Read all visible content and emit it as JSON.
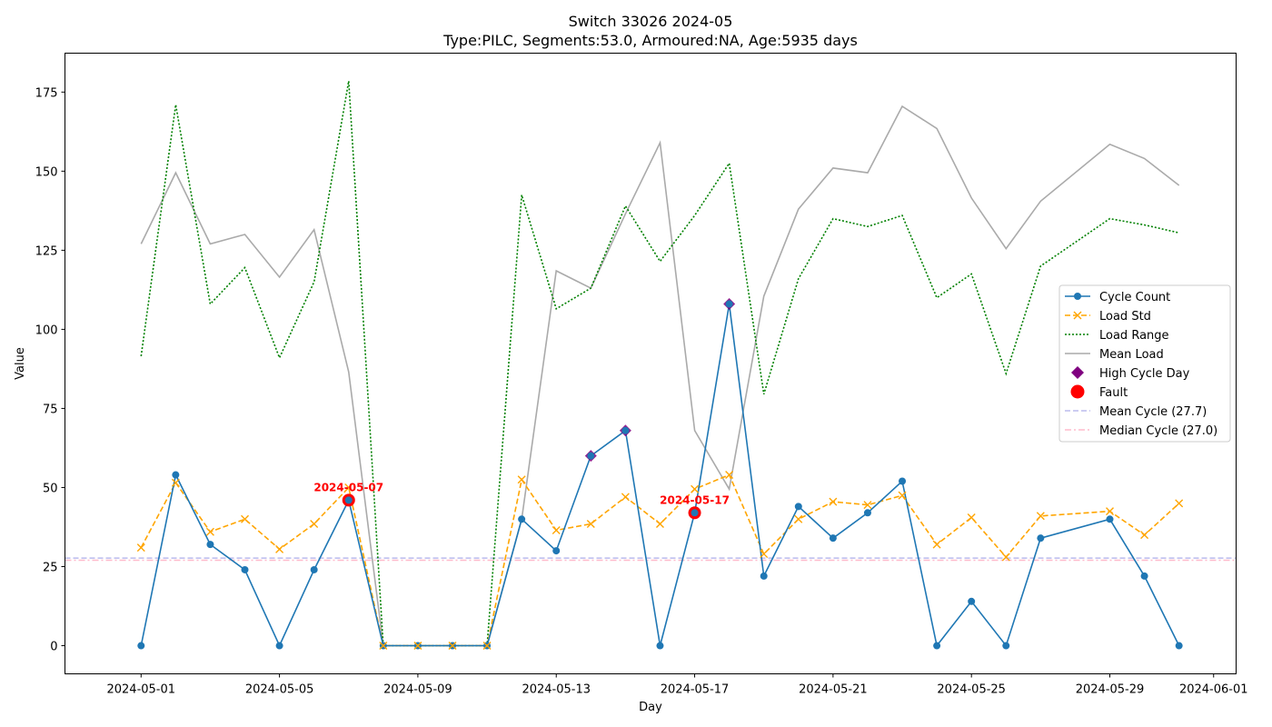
{
  "chart_data": {
    "type": "line",
    "title": "Switch 33026 2024-05",
    "subtitle": "Type:PILC, Segments:53.0, Armoured:NA, Age:5935 days",
    "xlabel": "Day",
    "ylabel": "Value",
    "xlim": [
      "2024-04-29",
      "2024-06-01"
    ],
    "ylim": [
      -8.9,
      187.3
    ],
    "x_ticks": [
      "2024-05-01",
      "2024-05-05",
      "2024-05-09",
      "2024-05-13",
      "2024-05-17",
      "2024-05-21",
      "2024-05-25",
      "2024-05-29",
      "2024-06-01"
    ],
    "y_ticks": [
      0,
      25,
      50,
      75,
      100,
      125,
      150,
      175
    ],
    "legend_position": "center-right",
    "grid": false,
    "series": [
      {
        "name": "Cycle Count",
        "color": "#1f77b4",
        "style": "solid",
        "marker": "circle",
        "points": [
          [
            "2024-05-01",
            0
          ],
          [
            "2024-05-02",
            54
          ],
          [
            "2024-05-03",
            32
          ],
          [
            "2024-05-04",
            24
          ],
          [
            "2024-05-05",
            0
          ],
          [
            "2024-05-06",
            24
          ],
          [
            "2024-05-07",
            46
          ],
          [
            "2024-05-08",
            0
          ],
          [
            "2024-05-09",
            0
          ],
          [
            "2024-05-10",
            0
          ],
          [
            "2024-05-11",
            0
          ],
          [
            "2024-05-12",
            40
          ],
          [
            "2024-05-13",
            30
          ],
          [
            "2024-05-14",
            60
          ],
          [
            "2024-05-15",
            68
          ],
          [
            "2024-05-16",
            0
          ],
          [
            "2024-05-17",
            42
          ],
          [
            "2024-05-18",
            108
          ],
          [
            "2024-05-19",
            22
          ],
          [
            "2024-05-20",
            44
          ],
          [
            "2024-05-21",
            34
          ],
          [
            "2024-05-22",
            42
          ],
          [
            "2024-05-23",
            52
          ],
          [
            "2024-05-24",
            0
          ],
          [
            "2024-05-25",
            14
          ],
          [
            "2024-05-26",
            0
          ],
          [
            "2024-05-27",
            34
          ],
          [
            "2024-05-29",
            40
          ],
          [
            "2024-05-30",
            22
          ],
          [
            "2024-05-31",
            0
          ]
        ]
      },
      {
        "name": "Load Std",
        "color": "#ffa500",
        "style": "dashed",
        "marker": "x",
        "points": [
          [
            "2024-05-01",
            31
          ],
          [
            "2024-05-02",
            51.5
          ],
          [
            "2024-05-03",
            36
          ],
          [
            "2024-05-04",
            40
          ],
          [
            "2024-05-05",
            30.5
          ],
          [
            "2024-05-06",
            38.5
          ],
          [
            "2024-05-07",
            50
          ],
          [
            "2024-05-08",
            0
          ],
          [
            "2024-05-09",
            0
          ],
          [
            "2024-05-10",
            0
          ],
          [
            "2024-05-11",
            0
          ],
          [
            "2024-05-12",
            52.5
          ],
          [
            "2024-05-13",
            36.5
          ],
          [
            "2024-05-14",
            38.5
          ],
          [
            "2024-05-15",
            47
          ],
          [
            "2024-05-16",
            38.5
          ],
          [
            "2024-05-17",
            49.5
          ],
          [
            "2024-05-18",
            54
          ],
          [
            "2024-05-19",
            29
          ],
          [
            "2024-05-20",
            40
          ],
          [
            "2024-05-21",
            45.5
          ],
          [
            "2024-05-22",
            44.5
          ],
          [
            "2024-05-23",
            47.5
          ],
          [
            "2024-05-24",
            32
          ],
          [
            "2024-05-25",
            40.5
          ],
          [
            "2024-05-26",
            28
          ],
          [
            "2024-05-27",
            41
          ],
          [
            "2024-05-29",
            42.5
          ],
          [
            "2024-05-30",
            35
          ],
          [
            "2024-05-31",
            45
          ]
        ]
      },
      {
        "name": "Load Range",
        "color": "#008000",
        "style": "dotted",
        "marker": "none",
        "points": [
          [
            "2024-05-01",
            91.5
          ],
          [
            "2024-05-02",
            171
          ],
          [
            "2024-05-03",
            108
          ],
          [
            "2024-05-04",
            119.5
          ],
          [
            "2024-05-05",
            91
          ],
          [
            "2024-05-06",
            115
          ],
          [
            "2024-05-07",
            178.5
          ],
          [
            "2024-05-08",
            0
          ],
          [
            "2024-05-09",
            0
          ],
          [
            "2024-05-10",
            0
          ],
          [
            "2024-05-11",
            0
          ],
          [
            "2024-05-12",
            142.5
          ],
          [
            "2024-05-13",
            106.5
          ],
          [
            "2024-05-14",
            113
          ],
          [
            "2024-05-15",
            139
          ],
          [
            "2024-05-16",
            121.5
          ],
          [
            "2024-05-17",
            136
          ],
          [
            "2024-05-18",
            152.5
          ],
          [
            "2024-05-19",
            79.5
          ],
          [
            "2024-05-20",
            116
          ],
          [
            "2024-05-21",
            135
          ],
          [
            "2024-05-22",
            132.5
          ],
          [
            "2024-05-23",
            136
          ],
          [
            "2024-05-24",
            110
          ],
          [
            "2024-05-25",
            117.5
          ],
          [
            "2024-05-26",
            86
          ],
          [
            "2024-05-27",
            120
          ],
          [
            "2024-05-29",
            135
          ],
          [
            "2024-05-30",
            133
          ],
          [
            "2024-05-31",
            130.5
          ]
        ]
      },
      {
        "name": "Mean Load",
        "color": "#aaaaaa",
        "style": "solid",
        "marker": "none",
        "points": [
          [
            "2024-05-01",
            127
          ],
          [
            "2024-05-02",
            149.5
          ],
          [
            "2024-05-03",
            127
          ],
          [
            "2024-05-04",
            130
          ],
          [
            "2024-05-05",
            116.5
          ],
          [
            "2024-05-06",
            131.5
          ],
          [
            "2024-05-07",
            86.5
          ],
          [
            "2024-05-08",
            0
          ],
          [
            "2024-05-09",
            0
          ],
          [
            "2024-05-10",
            0
          ],
          [
            "2024-05-11",
            0
          ],
          [
            "2024-05-12",
            40
          ],
          [
            "2024-05-13",
            118.5
          ],
          [
            "2024-05-14",
            113
          ],
          [
            "2024-05-15",
            136.5
          ],
          [
            "2024-05-16",
            159
          ],
          [
            "2024-05-17",
            68
          ],
          [
            "2024-05-18",
            49.5
          ],
          [
            "2024-05-19",
            110.5
          ],
          [
            "2024-05-20",
            138
          ],
          [
            "2024-05-21",
            151
          ],
          [
            "2024-05-22",
            149.5
          ],
          [
            "2024-05-23",
            170.5
          ],
          [
            "2024-05-24",
            163.5
          ],
          [
            "2024-05-25",
            141.5
          ],
          [
            "2024-05-26",
            125.5
          ],
          [
            "2024-05-27",
            140.5
          ],
          [
            "2024-05-29",
            158.5
          ],
          [
            "2024-05-30",
            154
          ],
          [
            "2024-05-31",
            145.5
          ]
        ]
      }
    ],
    "high_cycle_days": {
      "name": "High Cycle Day",
      "color": "#800080",
      "points": [
        [
          "2024-05-14",
          60
        ],
        [
          "2024-05-15",
          68
        ],
        [
          "2024-05-18",
          108
        ]
      ]
    },
    "faults": {
      "name": "Fault",
      "color": "#ff0000",
      "points": [
        [
          "2024-05-07",
          46
        ],
        [
          "2024-05-17",
          42
        ]
      ],
      "labels": [
        "2024-05-07",
        "2024-05-17"
      ]
    },
    "reference_lines": [
      {
        "name": "Mean Cycle (27.7)",
        "value": 27.7,
        "color": "#bbbbee",
        "style": "dashed"
      },
      {
        "name": "Median Cycle (27.0)",
        "value": 27.0,
        "color": "#ffbbcc",
        "style": "dashdot"
      }
    ]
  }
}
